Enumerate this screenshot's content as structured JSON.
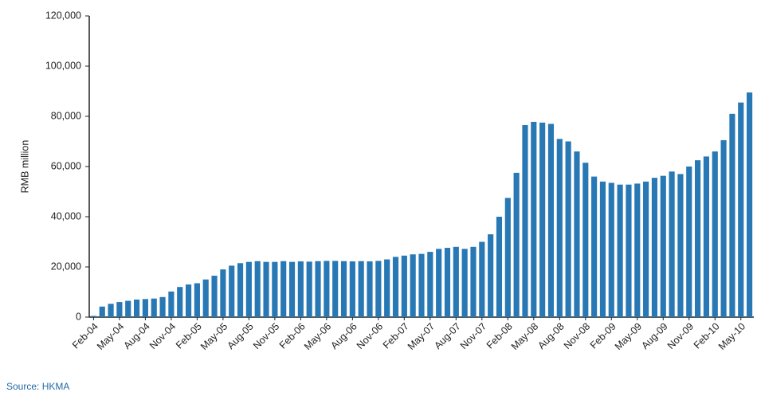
{
  "chart_data": {
    "type": "bar",
    "y_label": "RMB million",
    "source": "Source: HKMA",
    "color": "#2778b4",
    "categories": [
      "Feb-04",
      null,
      null,
      "May-04",
      null,
      null,
      "Aug-04",
      null,
      null,
      "Nov-04",
      null,
      null,
      "Feb-05",
      null,
      null,
      "May-05",
      null,
      null,
      "Aug-05",
      null,
      null,
      "Nov-05",
      null,
      null,
      "Feb-06",
      null,
      null,
      "May-06",
      null,
      null,
      "Aug-06",
      null,
      null,
      "Nov-06",
      null,
      null,
      "Feb-07",
      null,
      null,
      "May-07",
      null,
      null,
      "Aug-07",
      null,
      null,
      "Nov-07",
      null,
      null,
      "Feb-08",
      null,
      null,
      "May-08",
      null,
      null,
      "Aug-08",
      null,
      null,
      "Nov-08",
      null,
      null,
      "Feb-09",
      null,
      null,
      "May-09",
      null,
      null,
      "Aug-09",
      null,
      null,
      "Nov-09",
      null,
      null,
      "Feb-10",
      null,
      null,
      "May-10",
      null
    ],
    "values": [
      500,
      4200,
      5300,
      6000,
      6500,
      7000,
      7200,
      7400,
      8000,
      10200,
      12000,
      13000,
      13500,
      15000,
      16500,
      19000,
      20500,
      21500,
      22000,
      22300,
      22000,
      22000,
      22300,
      22000,
      22200,
      22100,
      22300,
      22400,
      22400,
      22300,
      22200,
      22300,
      22200,
      22400,
      23000,
      24000,
      24500,
      25000,
      25200,
      26000,
      27200,
      27600,
      28000,
      27200,
      28000,
      30000,
      33000,
      40000,
      47500,
      57500,
      76500,
      77800,
      77500,
      77000,
      71000,
      70000,
      66000,
      61500,
      56000,
      54000,
      53500,
      52800,
      52800,
      53200,
      54000,
      55500,
      56300,
      58000,
      57000,
      60000,
      62500,
      64000,
      66000,
      70500,
      81000,
      85500,
      89500
    ],
    "ylim": [
      0,
      120000
    ],
    "yticks": [
      0,
      {
        "value": 20000,
        "label": "20,000"
      },
      {
        "value": 40000,
        "label": "40,000"
      },
      {
        "value": 60000,
        "label": "60,000"
      },
      {
        "value": 80000,
        "label": "80,000"
      },
      {
        "value": 100000,
        "label": "100,000"
      },
      {
        "value": 120000,
        "label": "120,000"
      }
    ],
    "grid": false
  }
}
